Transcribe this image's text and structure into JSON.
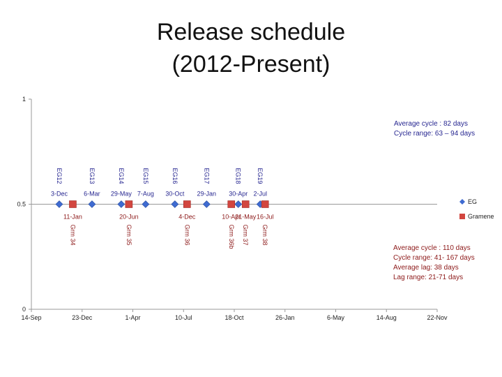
{
  "title": [
    "Release schedule",
    "(2012-Present)"
  ],
  "colors": {
    "eg": "#3f6bd1",
    "gramene": "#d2463f",
    "egText": "#262690",
    "grmText": "#8c1818"
  },
  "chart_data": {
    "type": "scatter",
    "ylim": [
      0,
      1
    ],
    "yticks": [
      "0",
      "0.5",
      "1"
    ],
    "xlim": [
      "2011-09-14",
      "2014-11-22"
    ],
    "xticks": [
      "14-Sep",
      "23-Dec",
      "1-Apr",
      "10-Jul",
      "18-Oct",
      "26-Jan",
      "6-May",
      "14-Aug",
      "22-Nov"
    ],
    "grid": false,
    "legend": "right",
    "series": [
      {
        "name": "EG",
        "marker": "diamond",
        "points": [
          {
            "x": "2011-12-03",
            "y": 0.5,
            "date": "3-Dec",
            "release": "EG12"
          },
          {
            "x": "2012-03-06",
            "y": 0.5,
            "date": "6-Mar",
            "release": "EG13"
          },
          {
            "x": "2012-05-29",
            "y": 0.5,
            "date": "29-May",
            "release": "EG14"
          },
          {
            "x": "2012-08-07",
            "y": 0.5,
            "date": "7-Aug",
            "release": "EG15"
          },
          {
            "x": "2012-10-30",
            "y": 0.5,
            "date": "30-Oct",
            "release": "EG16"
          },
          {
            "x": "2013-01-29",
            "y": 0.5,
            "date": "29-Jan",
            "release": "EG17"
          },
          {
            "x": "2013-04-30",
            "y": 0.5,
            "date": "30-Apr",
            "release": "EG18"
          },
          {
            "x": "2013-07-02",
            "y": 0.5,
            "date": "2-Jul",
            "release": "EG19"
          }
        ]
      },
      {
        "name": "Gramene",
        "marker": "square",
        "points": [
          {
            "x": "2012-01-11",
            "y": 0.5,
            "date": "11-Jan",
            "release": "Grm 34"
          },
          {
            "x": "2012-06-20",
            "y": 0.5,
            "date": "20-Jun",
            "release": "Grm 35"
          },
          {
            "x": "2012-12-04",
            "y": 0.5,
            "date": "4-Dec",
            "release": "Grm 36"
          },
          {
            "x": "2013-04-10",
            "y": 0.5,
            "date": "10-Apr",
            "release": "Grm 36b"
          },
          {
            "x": "2013-05-21",
            "y": 0.5,
            "date": "21-May",
            "release": "Grm 37"
          },
          {
            "x": "2013-07-16",
            "y": 0.5,
            "date": "16-Jul",
            "release": "Grm 38"
          }
        ]
      }
    ],
    "annotations": {
      "eg": [
        "Average cycle : 82 days",
        "Cycle range: 63 – 94 days"
      ],
      "gramene": [
        "Average cycle : 110 days",
        "Cycle range: 41- 167 days",
        "Average lag: 38 days",
        "Lag range: 21-71 days"
      ]
    }
  }
}
